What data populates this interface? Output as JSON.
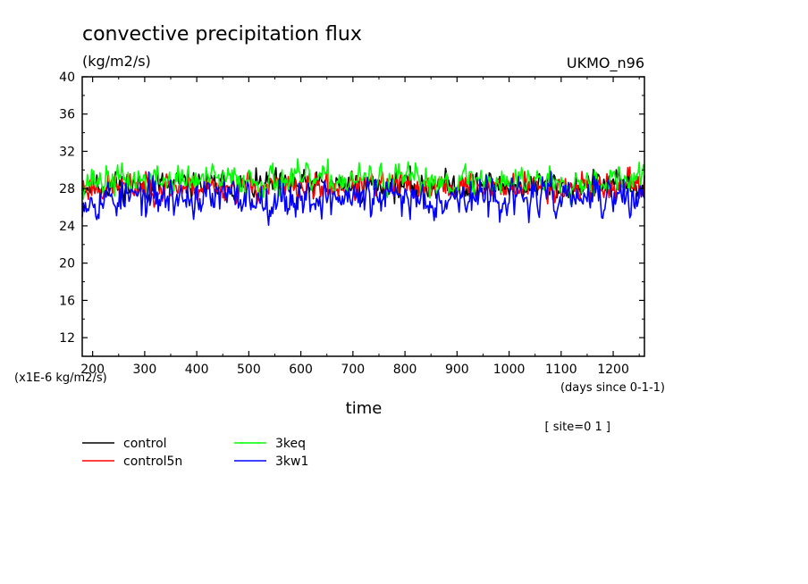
{
  "chart_data": {
    "type": "line",
    "title": "convective precipitation flux",
    "units": "(kg/m2/s)",
    "source": "UKMO_n96",
    "xlabel": "time",
    "x_units": "(days since 0-1-1)",
    "y_scale_note": "(x1E-6 kg/m2/s)",
    "site_note": "[ site=0 1 ]",
    "xlim": [
      180,
      1260
    ],
    "ylim": [
      10,
      40
    ],
    "x_ticks": [
      200,
      300,
      400,
      500,
      600,
      700,
      800,
      900,
      1000,
      1100,
      1200
    ],
    "y_ticks": [
      12,
      16,
      20,
      24,
      28,
      32,
      36,
      40
    ],
    "x_step": 2,
    "series": [
      {
        "name": "control",
        "color": "#000000",
        "mean": 28.3,
        "amplitude": 1.1,
        "seed": 11
      },
      {
        "name": "control5n",
        "color": "#ff0000",
        "mean": 28.2,
        "amplitude": 1.1,
        "seed": 23
      },
      {
        "name": "3keq",
        "color": "#00ff00",
        "mean": 28.9,
        "amplitude": 1.2,
        "seed": 37
      },
      {
        "name": "3kw1",
        "color": "#0000ff",
        "mean": 27.0,
        "amplitude": 1.5,
        "seed": 53
      }
    ]
  }
}
